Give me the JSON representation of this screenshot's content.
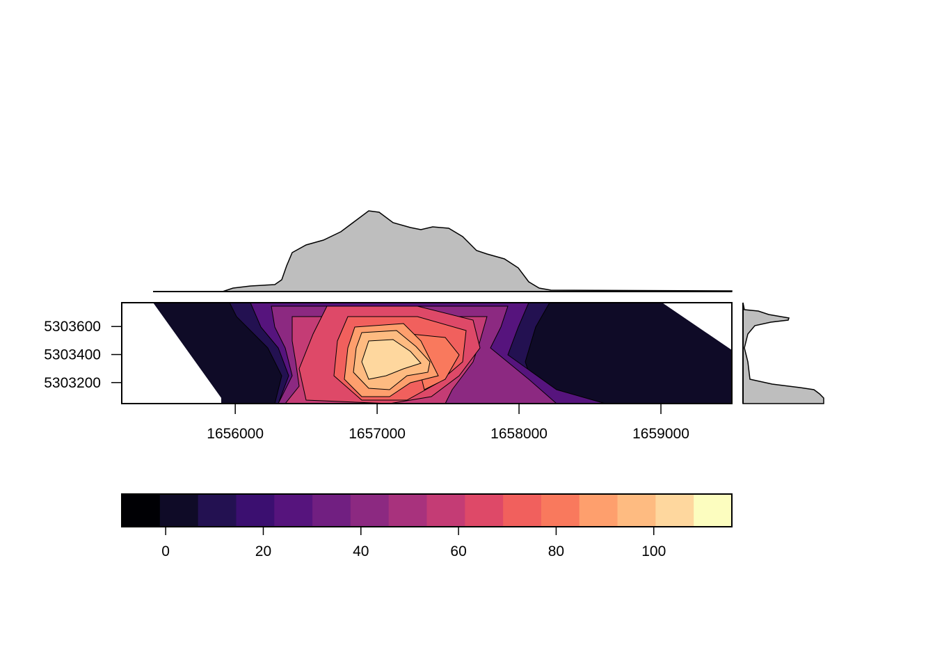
{
  "chart_data": [
    {
      "type": "heatmap",
      "title": "",
      "xlabel": "",
      "ylabel": "",
      "x_ticks": [
        1656000,
        1657000,
        1658000,
        1659000
      ],
      "y_ticks": [
        5303200,
        5303400,
        5303600
      ],
      "x_range": [
        1655200,
        1659500
      ],
      "y_range": [
        5303050,
        5303770
      ],
      "contours": true,
      "grid": false,
      "description_of_fill": "filled raster with contour lines; white no-data wedges at the left and upper-right corners"
    },
    {
      "type": "area",
      "name": "top-marginal-profile",
      "x": [
        1655230,
        1656150,
        1656650,
        1656950,
        1657500,
        1658100,
        1659500
      ],
      "y": [
        0,
        0.1,
        0.7,
        1.0,
        0.8,
        0.3,
        0
      ],
      "fill_color": "#bebebe"
    },
    {
      "type": "area",
      "name": "right-marginal-profile",
      "y": [
        5303050,
        5303200,
        5303400,
        5303650,
        5303770
      ],
      "x": [
        1.0,
        0.5,
        0.05,
        0.55,
        0.2
      ],
      "fill_color": "#bebebe"
    },
    {
      "type": "bar",
      "name": "color-scale",
      "tick_labels": [
        "0",
        "20",
        "40",
        "60",
        "80",
        "100"
      ],
      "tick_values": [
        0,
        20,
        40,
        60,
        80,
        100
      ],
      "range": [
        -9,
        116
      ],
      "colors": [
        "#000004",
        "#0f0b27",
        "#231151",
        "#3b0f70",
        "#56147d",
        "#711f81",
        "#8c2981",
        "#a8327d",
        "#c43c75",
        "#de4968",
        "#f1605d",
        "#f9795d",
        "#fe9f6d",
        "#febb81",
        "#fed79e",
        "#fcfdbf"
      ]
    }
  ]
}
